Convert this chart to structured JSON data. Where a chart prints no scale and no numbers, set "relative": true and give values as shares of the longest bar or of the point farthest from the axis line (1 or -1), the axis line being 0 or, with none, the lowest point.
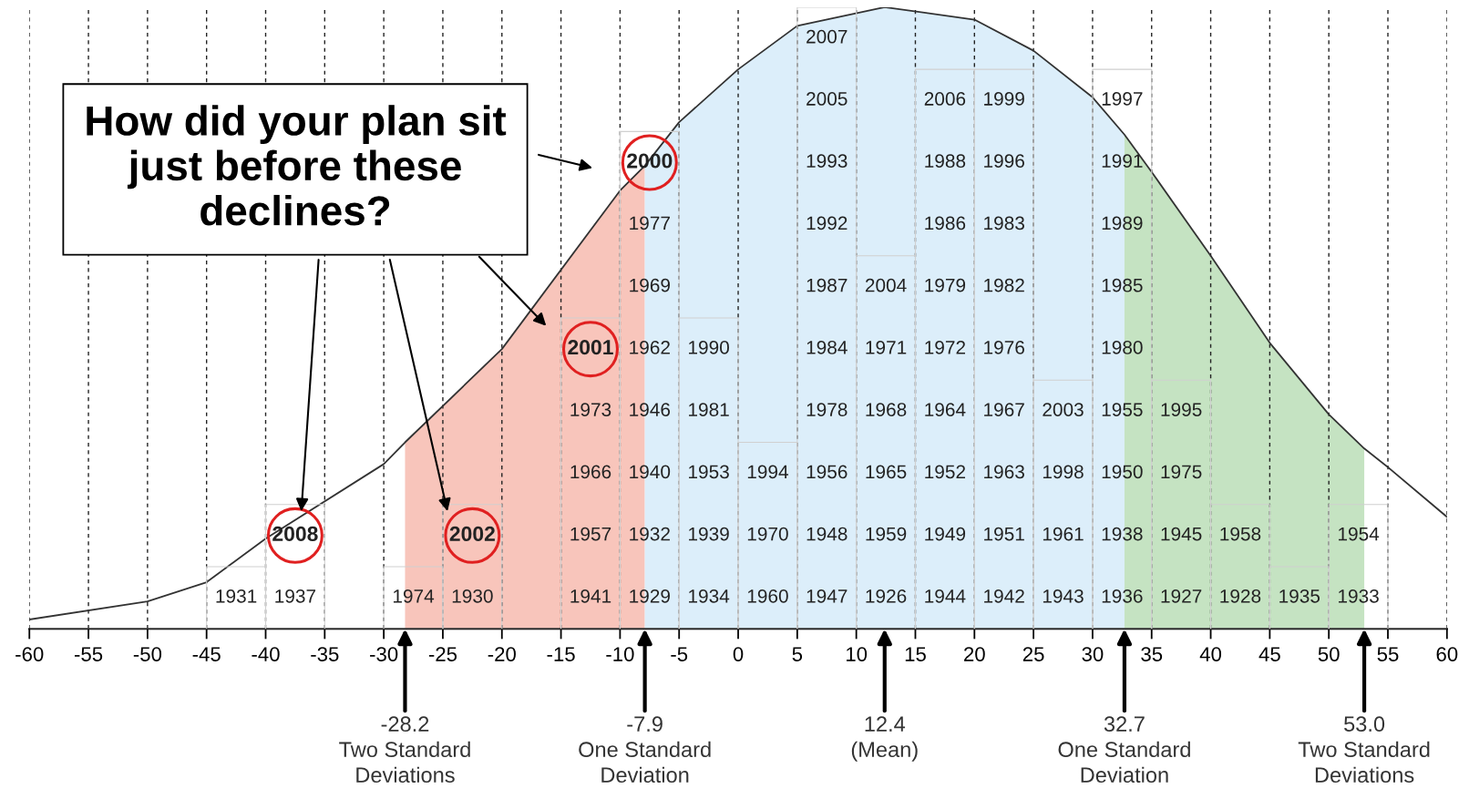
{
  "chart_data": {
    "type": "histogram",
    "relative": true,
    "bins": [
      -60,
      -55,
      -50,
      -45,
      -40,
      -35,
      -30,
      -25,
      -20,
      -15,
      -10,
      -5,
      0,
      5,
      10,
      15,
      20,
      25,
      30,
      35,
      40,
      45,
      50,
      55,
      60
    ],
    "xlim": [
      -60,
      60
    ],
    "xticks": [
      -60,
      -55,
      -50,
      -45,
      -40,
      -35,
      -30,
      -25,
      -20,
      -15,
      -10,
      -5,
      0,
      5,
      10,
      15,
      20,
      25,
      30,
      35,
      40,
      45,
      50,
      55,
      60
    ],
    "tick_labels": "x",
    "grid": "x",
    "series": [
      {
        "color": "#d0d0d0",
        "values": [
          0,
          0,
          0,
          0.1,
          0.2,
          0,
          0.1,
          0.2,
          0,
          0.5,
          0.8,
          0.5,
          0.3,
          1.0,
          0.6,
          0.9,
          0.9,
          0.4,
          0.9,
          0.4,
          0.2,
          0.1,
          0.2,
          0
        ]
      },
      {
        "type": "area",
        "color": "#f8c5bb",
        "x": [
          -28.2,
          -20,
          -10,
          -7.9
        ],
        "values": [
          0.3,
          0.45,
          0.705,
          0.745
        ]
      },
      {
        "type": "area",
        "color": "#dceefa",
        "x": [
          -7.9,
          -5,
          0,
          5,
          12.4,
          20,
          25,
          30,
          32.7
        ],
        "values": [
          0.745,
          0.815,
          0.9,
          0.97,
          1.0,
          0.98,
          0.93,
          0.855,
          0.795
        ]
      },
      {
        "type": "area",
        "color": "#c5e3c2",
        "x": [
          32.7,
          35,
          40,
          45,
          50,
          53
        ],
        "values": [
          0.795,
          0.735,
          0.6,
          0.46,
          0.345,
          0.29
        ]
      },
      {
        "type": "line",
        "color": "#333333",
        "x": [
          -60,
          -50,
          -45,
          -40,
          -30,
          -28.2,
          -20,
          -10,
          -7.9,
          -5,
          0,
          5,
          12.4,
          20,
          25,
          30,
          32.7,
          35,
          40,
          45,
          50,
          53,
          55,
          60
        ],
        "values": [
          0.015,
          0.044,
          0.075,
          0.145,
          0.265,
          0.3,
          0.45,
          0.705,
          0.745,
          0.815,
          0.9,
          0.97,
          1.0,
          0.98,
          0.93,
          0.855,
          0.795,
          0.735,
          0.6,
          0.46,
          0.345,
          0.29,
          0.26,
          0.18
        ]
      },
      {
        "type": "scatter",
        "marker": "circle",
        "color": "#e02020",
        "x": [
          -37.5,
          -22.5,
          -12.5,
          -7.5
        ],
        "values": [
          0.15,
          0.15,
          0.45,
          0.75
        ]
      }
    ],
    "annotations": [
      "How did your plan sit\njust before these\ndeclines?",
      {
        "text": "-28.2\nTwo Standard\nDeviations",
        "x": -28.2,
        "y": 0
      },
      {
        "text": "-7.9\nOne Standard\nDeviation",
        "x": -7.9,
        "y": 0
      },
      {
        "text": "12.4\n(Mean)",
        "x": 12.4,
        "y": 0
      },
      {
        "text": "32.7\nOne Standard\nDeviation",
        "x": 32.7,
        "y": 0
      },
      {
        "text": "53.0\nTwo Standard\nDeviations",
        "x": 53.0,
        "y": 0
      },
      "1931",
      "1937",
      "2008",
      "1974",
      "1930",
      "2002",
      "1941",
      "1957",
      "1966",
      "1973",
      "2001",
      "1929",
      "1932",
      "1940",
      "1946",
      "1962",
      "1969",
      "1977",
      "2000",
      "1934",
      "1939",
      "1953",
      "1981",
      "1990",
      "1960",
      "1970",
      "1994",
      "1947",
      "1948",
      "1956",
      "1978",
      "1984",
      "1987",
      "1992",
      "1993",
      "2005",
      "2007",
      "1926",
      "1959",
      "1965",
      "1968",
      "1971",
      "2004",
      "1944",
      "1949",
      "1952",
      "1964",
      "1972",
      "1979",
      "1986",
      "1988",
      "2006",
      "1942",
      "1951",
      "1963",
      "1967",
      "1976",
      "1982",
      "1983",
      "1996",
      "1999",
      "1943",
      "1961",
      "1998",
      "2003",
      "1936",
      "1938",
      "1950",
      "1955",
      "1980",
      "1985",
      "1989",
      "1991",
      "1997",
      "1927",
      "1945",
      "1975",
      "1995",
      "1928",
      "1958",
      "1935",
      "1933",
      "1954"
    ]
  }
}
